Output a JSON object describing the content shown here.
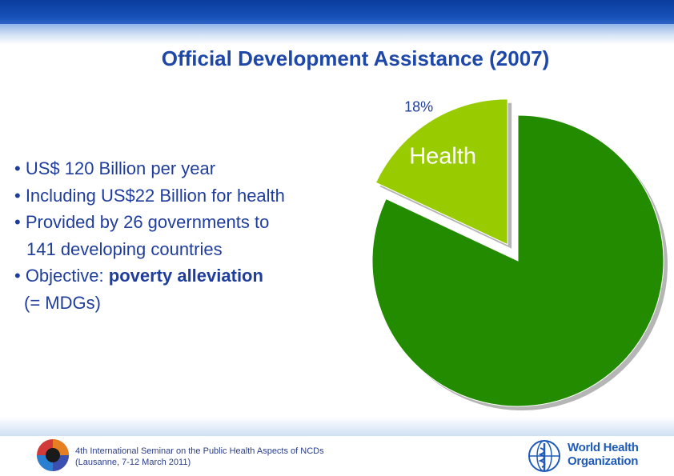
{
  "slide": {
    "title": "Official Development Assistance (2007)",
    "bullets": [
      "• US$ 120 Billion per year",
      "• Including US$22 Billion for health",
      "• Provided by 26 governments to",
      "141 developing countries",
      "• Objective: ",
      "poverty alleviation",
      "(= MDGs)"
    ]
  },
  "chart_data": {
    "type": "pie",
    "title": "",
    "slices": [
      {
        "label": "Health",
        "value": 18,
        "percent_label": "18%",
        "color": "#99cc00",
        "exploded": true
      },
      {
        "label": "",
        "value": 82,
        "percent_label": "",
        "color": "#228b00",
        "exploded": false
      }
    ]
  },
  "footer": {
    "line1": "4th International Seminar on the Public Health Aspects of NCDs",
    "line2": "(Lausanne, 7-12 March 2011)",
    "who_line1": "World Health",
    "who_line2": "Organization"
  },
  "colors": {
    "title": "#1d47a8",
    "text": "#1f3d9c",
    "who_blue": "#1e5bb8"
  }
}
